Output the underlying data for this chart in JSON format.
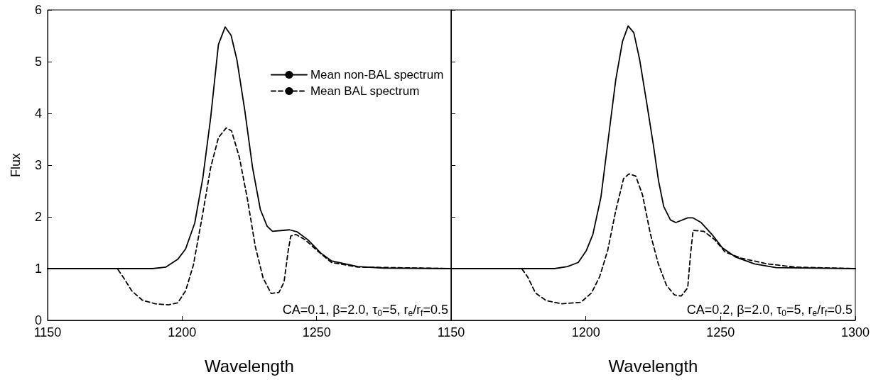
{
  "chart_data": [
    {
      "type": "line",
      "xlabel": "Wavelength",
      "ylabel": "Flux",
      "xlim": [
        1150,
        1300
      ],
      "xticks": [
        1150,
        1200,
        1250,
        {
          "value": 1300,
          "label": null
        }
      ],
      "ylim": [
        0,
        6
      ],
      "yticks": [
        0,
        1,
        2,
        3,
        4,
        5,
        6
      ],
      "grid": false,
      "legend": "top right",
      "marker": "none",
      "annotations": [
        "CA=0.1, β=2.0, τ$_{0}$=5, r$_{e}$/r$_{f}$=0.5"
      ],
      "series": [
        {
          "name": "Mean non-BAL spectrum",
          "color": "#000000",
          "line_style": "solid",
          "x": [
            1150,
            1189,
            1194,
            1198.4,
            1201.3,
            1204.7,
            1207.7,
            1210.6,
            1213.5,
            1216,
            1218.2,
            1220.4,
            1223.3,
            1226.2,
            1229.1,
            1231.6,
            1233.6,
            1239.9,
            1242.8,
            1246.7,
            1251.6,
            1255.5,
            1265.3,
            1275,
            1300
          ],
          "values": [
            1,
            1,
            1.03,
            1.18,
            1.38,
            1.88,
            2.75,
            3.91,
            5.33,
            5.67,
            5.51,
            5.03,
            4.06,
            2.95,
            2.14,
            1.82,
            1.72,
            1.75,
            1.71,
            1.56,
            1.3,
            1.15,
            1.04,
            1.01,
            1
          ]
        },
        {
          "name": "Mean BAL spectrum",
          "color": "#000000",
          "line_style": "dashed",
          "x": [
            1150,
            1175.9,
            1178.3,
            1181.3,
            1185.2,
            1190,
            1195,
            1198.4,
            1201.3,
            1204.2,
            1207.6,
            1210.6,
            1213.5,
            1216.4,
            1218.4,
            1221.3,
            1224.3,
            1227.2,
            1230.1,
            1233.1,
            1236,
            1237.9,
            1239.4,
            1240.4,
            1242.3,
            1245.7,
            1250.6,
            1255.5,
            1265.3,
            1300
          ],
          "values": [
            1,
            1,
            0.82,
            0.57,
            0.39,
            0.32,
            0.3,
            0.34,
            0.57,
            1.07,
            2.04,
            2.95,
            3.53,
            3.72,
            3.66,
            3.15,
            2.34,
            1.43,
            0.82,
            0.52,
            0.54,
            0.74,
            1.33,
            1.63,
            1.66,
            1.56,
            1.33,
            1.12,
            1.03,
            1
          ]
        }
      ]
    },
    {
      "type": "line",
      "xlabel": "Wavelength",
      "xlim": [
        1150,
        1300
      ],
      "xticks": [
        1150,
        1200,
        1250,
        1300
      ],
      "ylim": [
        0,
        6
      ],
      "yticks": [
        0,
        1,
        2,
        3,
        4,
        5,
        6
      ],
      "tick_labels": "x",
      "grid": false,
      "marker": "none",
      "annotations": [
        "CA=0.2, β=2.0, τ$_{0}$=5, r$_{e}$/r$_{f}$=0.5"
      ],
      "series": [
        {
          "color": "#000000",
          "line_style": "solid",
          "x": [
            1150,
            1188.3,
            1193.2,
            1197.2,
            1200.2,
            1202.6,
            1205.6,
            1208.6,
            1211.1,
            1213.6,
            1215.7,
            1217.8,
            1220,
            1222.5,
            1225,
            1227,
            1228.9,
            1231.4,
            1233.4,
            1237.8,
            1239.8,
            1242.8,
            1246.8,
            1250.7,
            1255.7,
            1262.6,
            1270.6,
            1300
          ],
          "values": [
            1,
            1,
            1.04,
            1.12,
            1.35,
            1.66,
            2.38,
            3.62,
            4.65,
            5.39,
            5.69,
            5.56,
            5.03,
            4.23,
            3.41,
            2.69,
            2.2,
            1.94,
            1.89,
            1.98,
            1.98,
            1.89,
            1.66,
            1.4,
            1.22,
            1.09,
            1.02,
            1
          ]
        },
        {
          "color": "#000000",
          "line_style": "dashed",
          "x": [
            1150,
            1176.2,
            1178.4,
            1181.3,
            1185.3,
            1191.2,
            1198.2,
            1202.1,
            1205.1,
            1208.1,
            1211.1,
            1214,
            1216,
            1218.5,
            1221,
            1224,
            1226.9,
            1229.9,
            1232.9,
            1235.4,
            1237.8,
            1238.8,
            1239.8,
            1243.8,
            1247.8,
            1251.7,
            1257.7,
            1267.6,
            1277.5,
            1300
          ],
          "values": [
            1,
            1,
            0.84,
            0.53,
            0.38,
            0.32,
            0.35,
            0.53,
            0.84,
            1.35,
            2.12,
            2.74,
            2.83,
            2.79,
            2.43,
            1.66,
            1.09,
            0.68,
            0.49,
            0.47,
            0.63,
            1.25,
            1.74,
            1.72,
            1.56,
            1.32,
            1.2,
            1.09,
            1.03,
            1
          ]
        }
      ]
    }
  ]
}
